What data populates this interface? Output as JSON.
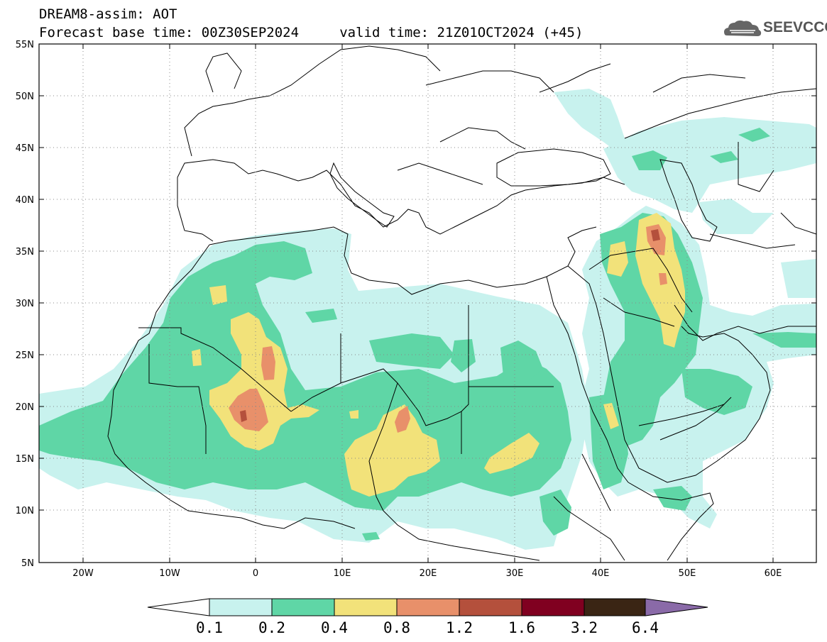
{
  "header": {
    "line1": "DREAM8-assim: AOT",
    "line2": "Forecast base time: 00Z30SEP2024     valid time: 21Z01OCT2024 (+45)",
    "logo_text": "SEEVCCC"
  },
  "map": {
    "lat_labels": [
      "55N",
      "50N",
      "45N",
      "40N",
      "35N",
      "30N",
      "25N",
      "20N",
      "15N",
      "10N",
      "5N"
    ],
    "lon_labels": [
      "20W",
      "10W",
      "0",
      "10E",
      "20E",
      "30E",
      "40E",
      "50E",
      "60E"
    ],
    "colors": {
      "c1": "#c8f2ee",
      "c2": "#5fd6a6",
      "c3": "#f2e27a",
      "c4": "#e8906a",
      "c5": "#b4503c",
      "c6": "#800020",
      "c7": "#3a2514",
      "c8": "#8a6aa8"
    }
  },
  "colorbar": {
    "labels": [
      "0.1",
      "0.2",
      "0.4",
      "0.8",
      "1.2",
      "1.6",
      "3.2",
      "6.4"
    ]
  }
}
